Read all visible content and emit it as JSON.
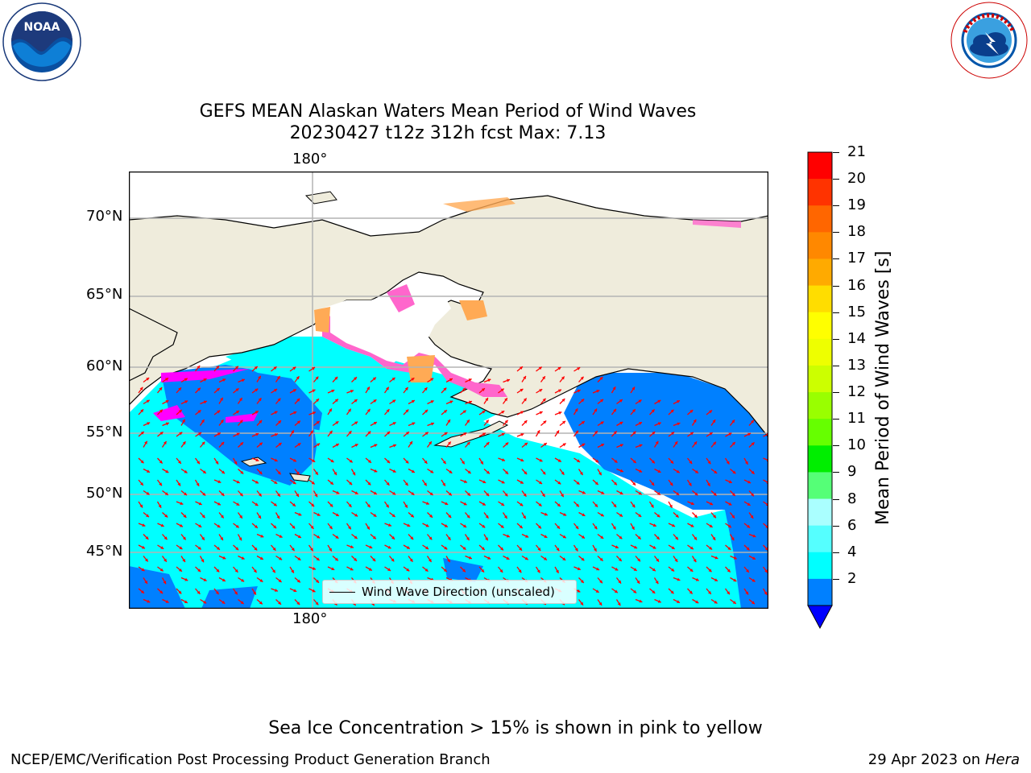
{
  "title_line1": "GEFS MEAN Alaskan Waters Mean Period of Wind Waves",
  "title_line2": "20230427 t12z 312h fcst   Max: 7.13",
  "logos": {
    "left": "noara-logo",
    "right": "nws-logo"
  },
  "map": {
    "lat_labels": [
      "70°N",
      "65°N",
      "60°N",
      "55°N",
      "50°N",
      "45°N"
    ],
    "lon_label_top": "180°",
    "lon_label_bottom": "180°",
    "land_color": "#efecdc",
    "ocean_low_color": "#0080ff",
    "ocean_mid_color": "#00ffff",
    "ice_colors": [
      "#ff00ff",
      "#ff66cc",
      "#ffaa55",
      "#ffff00"
    ],
    "arrow_color": "#ff0000",
    "legend_label": "Wind Wave Direction (unscaled)"
  },
  "colorbar": {
    "label": "Mean Period of Wind Waves [s]",
    "ticks": [
      "21",
      "20",
      "19",
      "18",
      "17",
      "16",
      "15",
      "14",
      "13",
      "12",
      "11",
      "10",
      "9",
      "8",
      "6",
      "4",
      "2"
    ],
    "colors": [
      "#ff0000",
      "#ff3300",
      "#ff6600",
      "#ff8800",
      "#ffaa00",
      "#ffdd00",
      "#ffff00",
      "#eeff00",
      "#ccff00",
      "#99ff00",
      "#66ff00",
      "#00ee00",
      "#55ff77",
      "#aaffff",
      "#55ffff",
      "#00ffff",
      "#0080ff"
    ],
    "extend_color": "#0000ff"
  },
  "footer": {
    "note": "Sea Ice Concentration > 15% is shown in pink to yellow",
    "left": "NCEP/EMC/Verification Post Processing Product Generation Branch",
    "date": "29 Apr 2023 on",
    "machine": "Hera"
  }
}
